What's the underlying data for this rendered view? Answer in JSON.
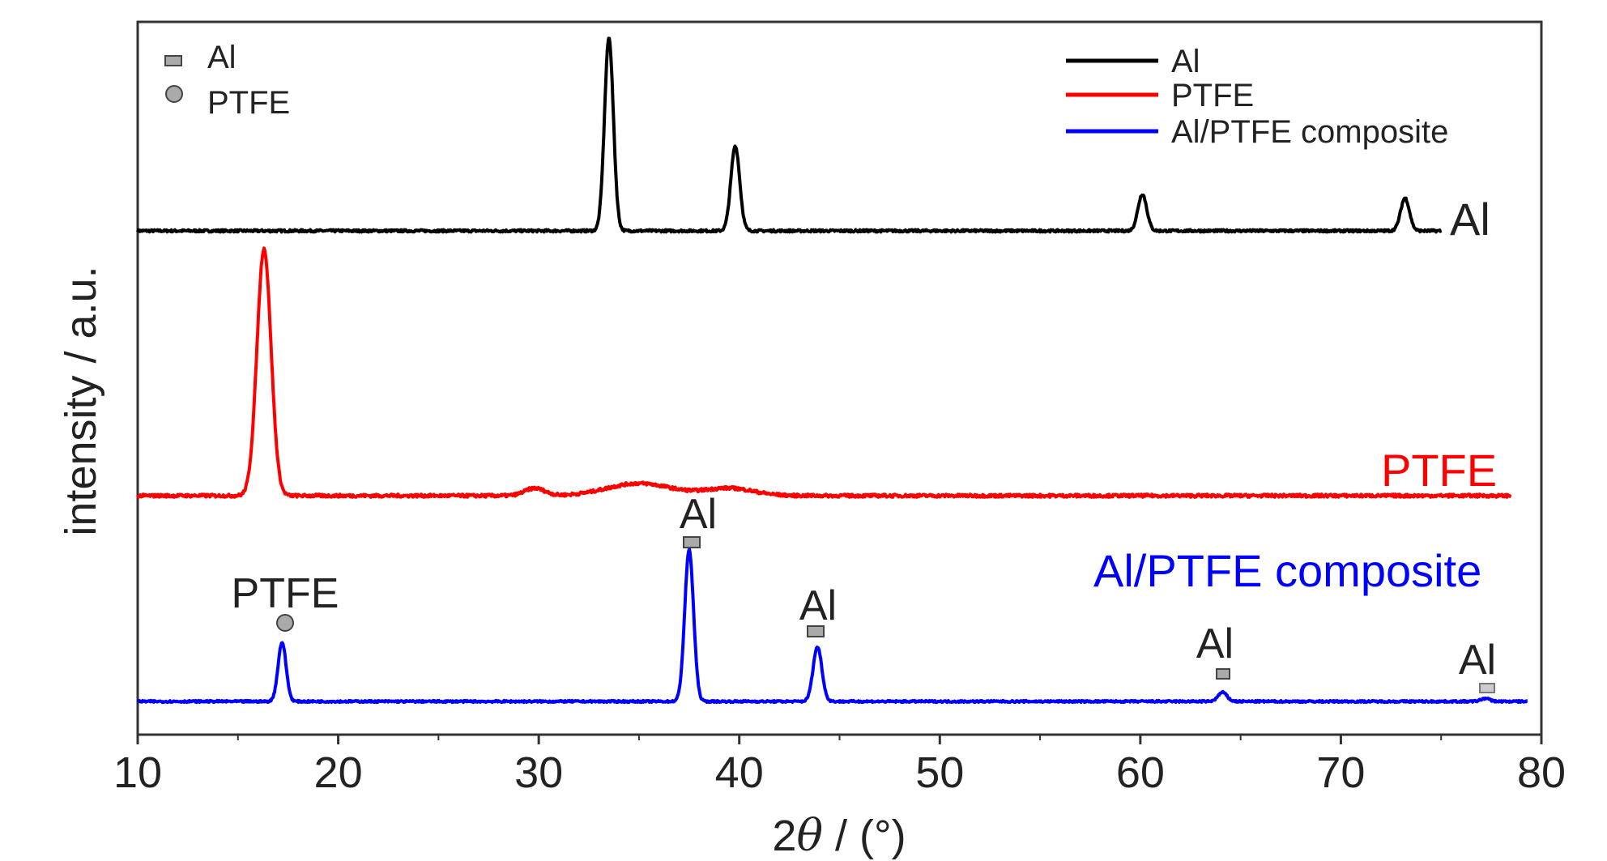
{
  "chart_data": {
    "type": "line",
    "xlabel_prefix": "2",
    "xlabel_var": "θ",
    "xlabel_suffix": " / (°)",
    "ylabel": "intensity / a.u.",
    "xlim": [
      10,
      80
    ],
    "xticks": [
      10,
      20,
      30,
      40,
      50,
      60,
      70,
      80
    ],
    "xtick_labels": [
      "10",
      "20",
      "30",
      "40",
      "50",
      "60",
      "70",
      "80"
    ],
    "legend_position": "top-right",
    "series": [
      {
        "name": "Al",
        "color": "#000000",
        "label": "Al",
        "x_end": 75,
        "baseline": 0.0,
        "peaks": [
          {
            "x": 33.5,
            "height": 1.0,
            "width": 0.22
          },
          {
            "x": 39.8,
            "height": 0.44,
            "width": 0.22
          },
          {
            "x": 60.1,
            "height": 0.19,
            "width": 0.22
          },
          {
            "x": 73.2,
            "height": 0.17,
            "width": 0.22
          }
        ]
      },
      {
        "name": "PTFE",
        "color": "#ff0000",
        "label": "PTFE",
        "x_end": 78.5,
        "baseline": 0.0,
        "peaks": [
          {
            "x": 16.3,
            "height": 1.0,
            "width": 0.35
          },
          {
            "x": 29.8,
            "height": 0.03,
            "width": 0.5
          },
          {
            "x": 35.0,
            "height": 0.05,
            "width": 1.6
          },
          {
            "x": 39.5,
            "height": 0.03,
            "width": 1.2
          }
        ]
      },
      {
        "name": "Al/PTFE composite",
        "color": "#0000ff",
        "label": "Al/PTFE composite",
        "x_end": 79.3,
        "baseline": 0.0,
        "peaks": [
          {
            "x": 17.2,
            "height": 0.39,
            "width": 0.2
          },
          {
            "x": 37.5,
            "height": 1.0,
            "width": 0.22
          },
          {
            "x": 43.9,
            "height": 0.36,
            "width": 0.22
          },
          {
            "x": 64.1,
            "height": 0.06,
            "width": 0.22
          },
          {
            "x": 77.2,
            "height": 0.02,
            "width": 0.22
          }
        ]
      }
    ],
    "phase_legend": [
      {
        "marker": "square",
        "label": "Al"
      },
      {
        "marker": "circle",
        "label": "PTFE"
      }
    ],
    "peak_annotations": [
      {
        "label": "PTFE",
        "marker": "circle",
        "x": 17.3
      },
      {
        "label": "Al",
        "marker": "square",
        "x": 37.5
      },
      {
        "label": "Al",
        "marker": "square",
        "x": 43.9
      },
      {
        "label": "Al",
        "marker": "square",
        "x": 64.1
      },
      {
        "label": "Al",
        "marker": "square",
        "x": 77.1
      }
    ]
  }
}
